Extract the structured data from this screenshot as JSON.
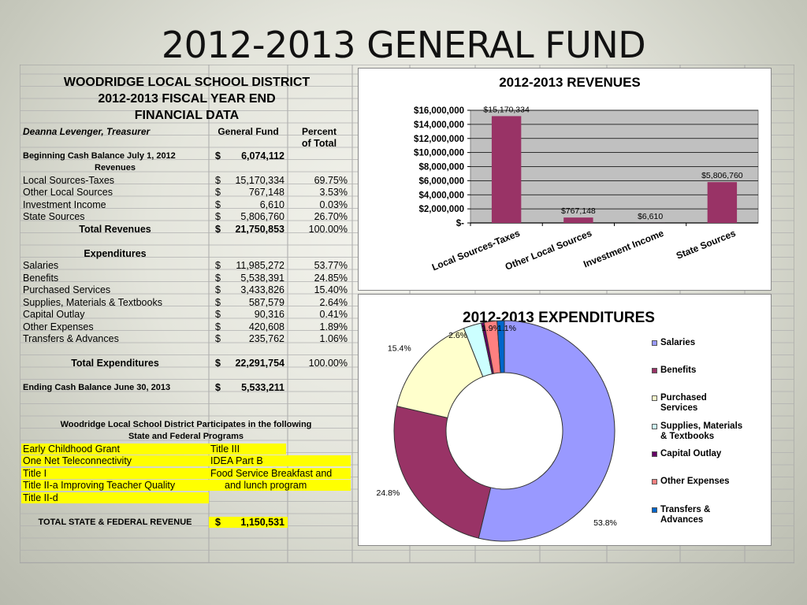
{
  "slide_title": "2012-2013 GENERAL FUND",
  "sheet": {
    "title_lines": [
      "WOODRIDGE LOCAL SCHOOL DISTRICT",
      "2012-2013 FISCAL YEAR END",
      "FINANCIAL DATA"
    ],
    "treasurer": "Deanna Levenger, Treasurer",
    "col_general_fund": "General Fund",
    "col_percent": "Percent",
    "col_percent_2": "of Total",
    "beginning_label": "Beginning Cash Balance July 1, 2012",
    "beginning_value": "6,074,112",
    "revenues_heading": "Revenues",
    "revenues": [
      {
        "label": "Local Sources-Taxes",
        "value": "15,170,334",
        "pct": "69.75%"
      },
      {
        "label": "Other Local Sources",
        "value": "767,148",
        "pct": "3.53%"
      },
      {
        "label": "Investment Income",
        "value": "6,610",
        "pct": "0.03%"
      },
      {
        "label": "State Sources",
        "value": "5,806,760",
        "pct": "26.70%"
      }
    ],
    "total_revenues_label": "Total Revenues",
    "total_revenues_value": "21,750,853",
    "total_revenues_pct": "100.00%",
    "expenditures_heading": "Expenditures",
    "expenditures": [
      {
        "label": "Salaries",
        "value": "11,985,272",
        "pct": "53.77%"
      },
      {
        "label": "Benefits",
        "value": "5,538,391",
        "pct": "24.85%"
      },
      {
        "label": "Purchased Services",
        "value": "3,433,826",
        "pct": "15.40%"
      },
      {
        "label": "Supplies, Materials & Textbooks",
        "value": "587,579",
        "pct": "2.64%"
      },
      {
        "label": "Capital Outlay",
        "value": "90,316",
        "pct": "0.41%"
      },
      {
        "label": "Other Expenses",
        "value": "420,608",
        "pct": "1.89%"
      },
      {
        "label": "Transfers & Advances",
        "value": "235,762",
        "pct": "1.06%"
      }
    ],
    "total_expenditures_label": "Total Expenditures",
    "total_expenditures_value": "22,291,754",
    "total_expenditures_pct": "100.00%",
    "ending_label": "Ending Cash Balance June 30, 2013",
    "ending_value": "5,533,211",
    "programs_heading_1": "Woodridge Local School District Participates in the following",
    "programs_heading_2": "State and Federal Programs",
    "programs": [
      {
        "left": "Early Childhood Grant",
        "right": "Title III"
      },
      {
        "left": "One Net Teleconnectivity",
        "right": "IDEA Part B"
      },
      {
        "left": "Title I",
        "right": "Food Service Breakfast and"
      },
      {
        "left": "Title II-a Improving Teacher Quality",
        "right": "and lunch program"
      },
      {
        "left": "Title II-d",
        "right": ""
      }
    ],
    "total_sf_label": "TOTAL STATE & FEDERAL REVENUE",
    "total_sf_value": "1,150,531",
    "dollar": "$"
  },
  "chart_data": [
    {
      "type": "bar",
      "title": "2012-2013  REVENUES",
      "categories": [
        "Local Sources-Taxes",
        "Other Local Sources",
        "Investment Income",
        "State Sources"
      ],
      "values": [
        15170334,
        767148,
        6610,
        5806760
      ],
      "data_labels": [
        "$15,170,334",
        "$767,148",
        "$6,610",
        "$5,806,760"
      ],
      "ylim": [
        0,
        16000000
      ],
      "yticks": [
        "$-",
        "$2,000,000",
        "$4,000,000",
        "$6,000,000",
        "$8,000,000",
        "$10,000,000",
        "$12,000,000",
        "$14,000,000",
        "$16,000,000"
      ],
      "grid": true,
      "bar_color": "#993366",
      "plot_bg": "#c0c0c0"
    },
    {
      "type": "pie",
      "style": "doughnut",
      "title": "2012-2013  EXPENDITURES",
      "labels": [
        "Salaries",
        "Benefits",
        "Purchased Services",
        "Supplies, Materials & Textbooks",
        "Capital Outlay",
        "Other Expenses",
        "Transfers & Advances"
      ],
      "legend_lines": [
        [
          "Salaries"
        ],
        [
          "Benefits"
        ],
        [
          "Purchased",
          "Services"
        ],
        [
          "Supplies, Materials",
          "& Textbooks"
        ],
        [
          "Capital Outlay"
        ],
        [
          "Other Expenses"
        ],
        [
          "Transfers &",
          "Advances"
        ]
      ],
      "values": [
        53.77,
        24.85,
        15.4,
        2.64,
        0.41,
        1.89,
        1.06
      ],
      "data_labels": [
        "53.8%",
        "24.8%",
        "15.4%",
        "2.6%",
        "",
        "1.9%",
        "1.1%"
      ],
      "colors": [
        "#9999ff",
        "#993366",
        "#ffffcc",
        "#ccffff",
        "#660066",
        "#ff8080",
        "#0066cc"
      ],
      "legend": "right"
    }
  ]
}
